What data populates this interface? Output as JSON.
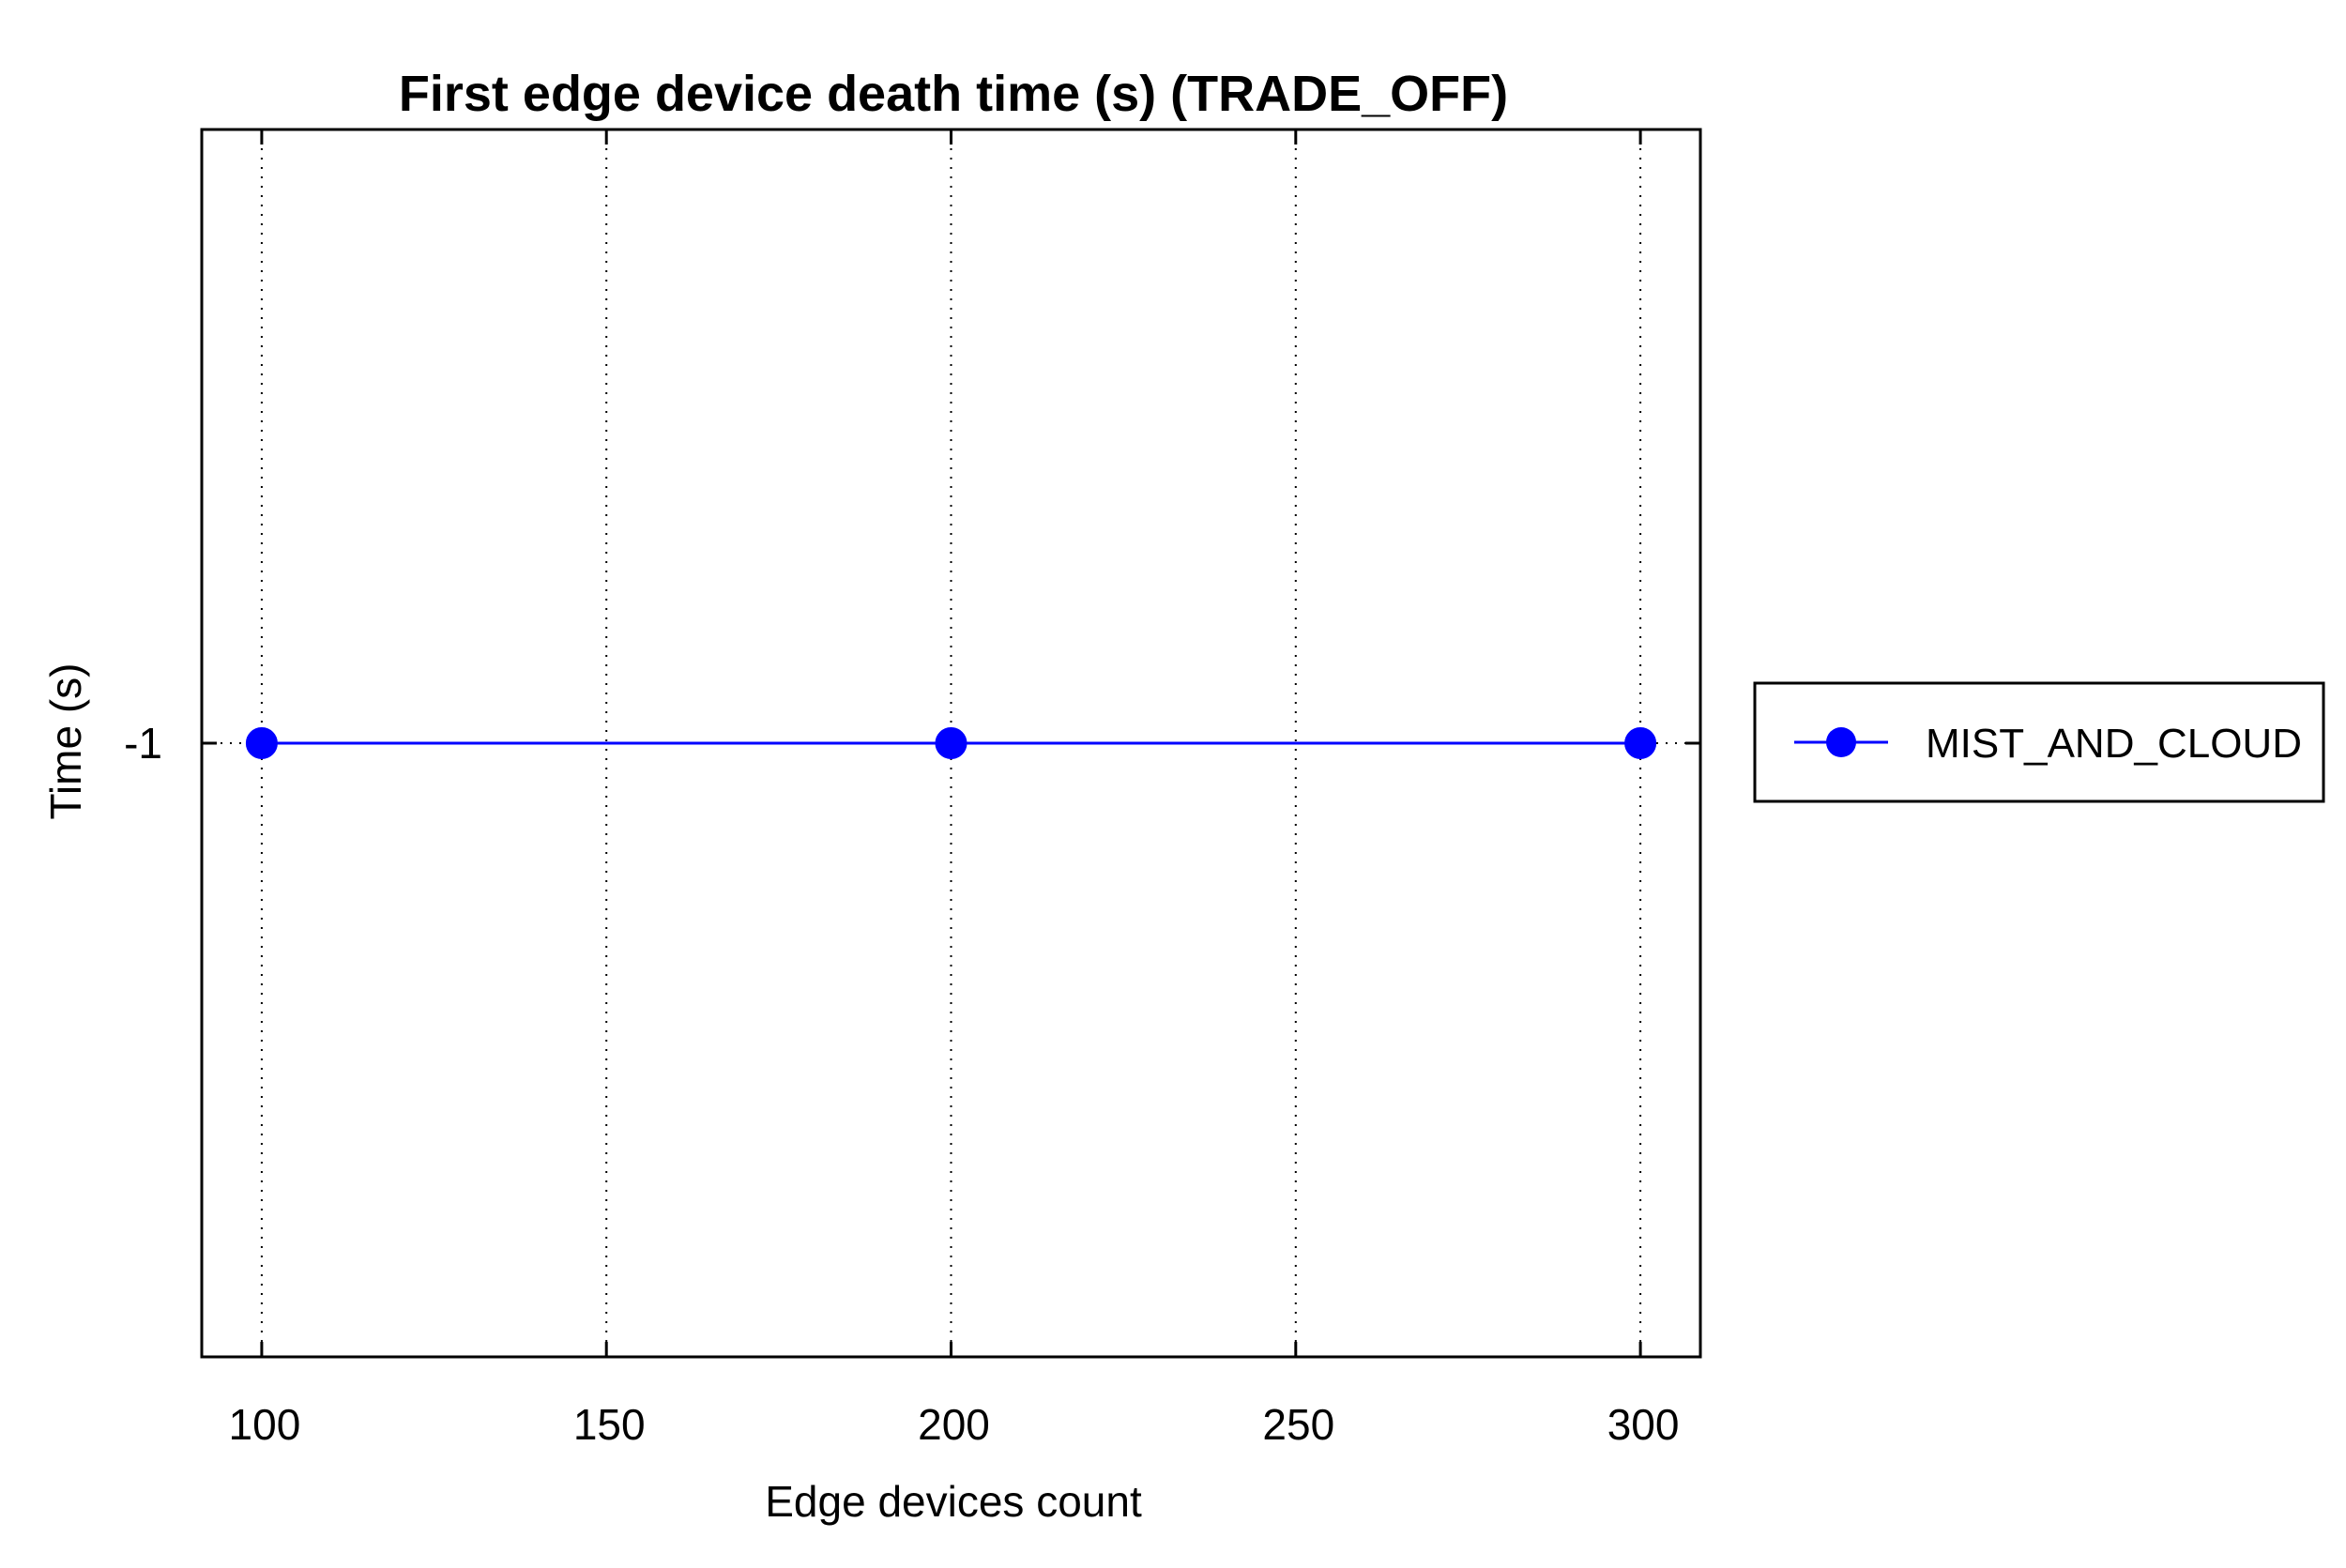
{
  "chart_data": {
    "type": "line",
    "title": "First edge device death time (s) (TRADE_OFF)",
    "xlabel": "Edge devices count",
    "ylabel": "Time (s)",
    "x": [
      100,
      200,
      300
    ],
    "series": [
      {
        "name": "MIST_AND_CLOUD",
        "values": [
          -1,
          -1,
          -1
        ],
        "color": "#0000ff",
        "marker": "circle"
      }
    ],
    "xlim": [
      91.3,
      308.7
    ],
    "ylim": [
      -2,
      0
    ],
    "xticks": [
      100,
      150,
      200,
      250,
      300
    ],
    "xtick_labels": [
      "100",
      "150",
      "200",
      "250",
      "300"
    ],
    "yticks": [
      -1
    ],
    "ytick_labels": [
      "-1"
    ],
    "grid": "vertical-dotted",
    "legend_position": "outside-right"
  }
}
